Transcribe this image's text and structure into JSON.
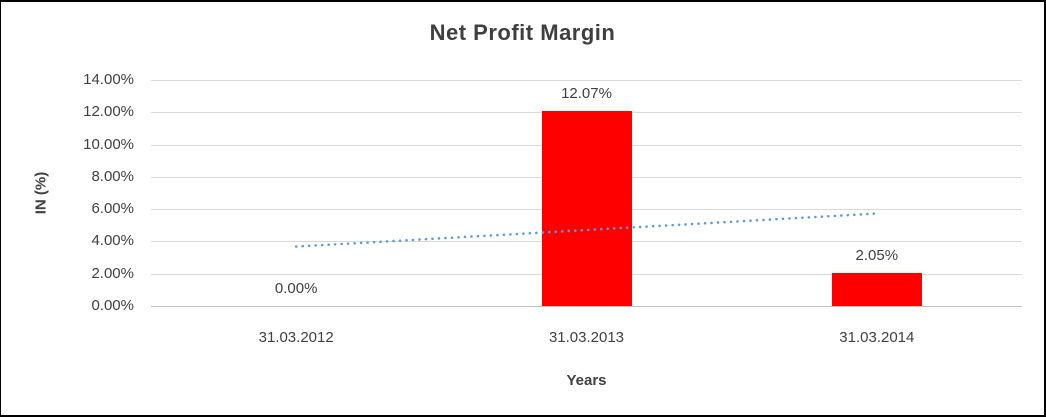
{
  "frame": {
    "background": "#FFFFFF",
    "border_color": "#000000"
  },
  "chart_data": {
    "type": "bar",
    "title": "Net Profit Margin",
    "xlabel": "Years",
    "ylabel": "IN (%)",
    "categories": [
      "31.03.2012",
      "31.03.2013",
      "31.03.2014"
    ],
    "series": [
      {
        "name": "Net Profit Margin",
        "color": "#FF0000",
        "values": [
          0.0,
          12.07,
          2.05
        ],
        "data_labels": [
          "0.00%",
          "12.07%",
          "2.05%"
        ]
      }
    ],
    "trendline": {
      "type": "linear",
      "style": "dotted",
      "color": "#5B9BD5",
      "start_value": 3.68,
      "end_value": 5.73
    },
    "y_axis": {
      "min": 0,
      "max": 14,
      "step": 2,
      "tick_labels": [
        "0.00%",
        "2.00%",
        "4.00%",
        "6.00%",
        "8.00%",
        "10.00%",
        "12.00%",
        "14.00%"
      ]
    },
    "grid": true,
    "legend": "none",
    "colors": {
      "gridline": "#D9D9D9",
      "axis_line": "#BFBFBF",
      "text": "#404040"
    }
  }
}
